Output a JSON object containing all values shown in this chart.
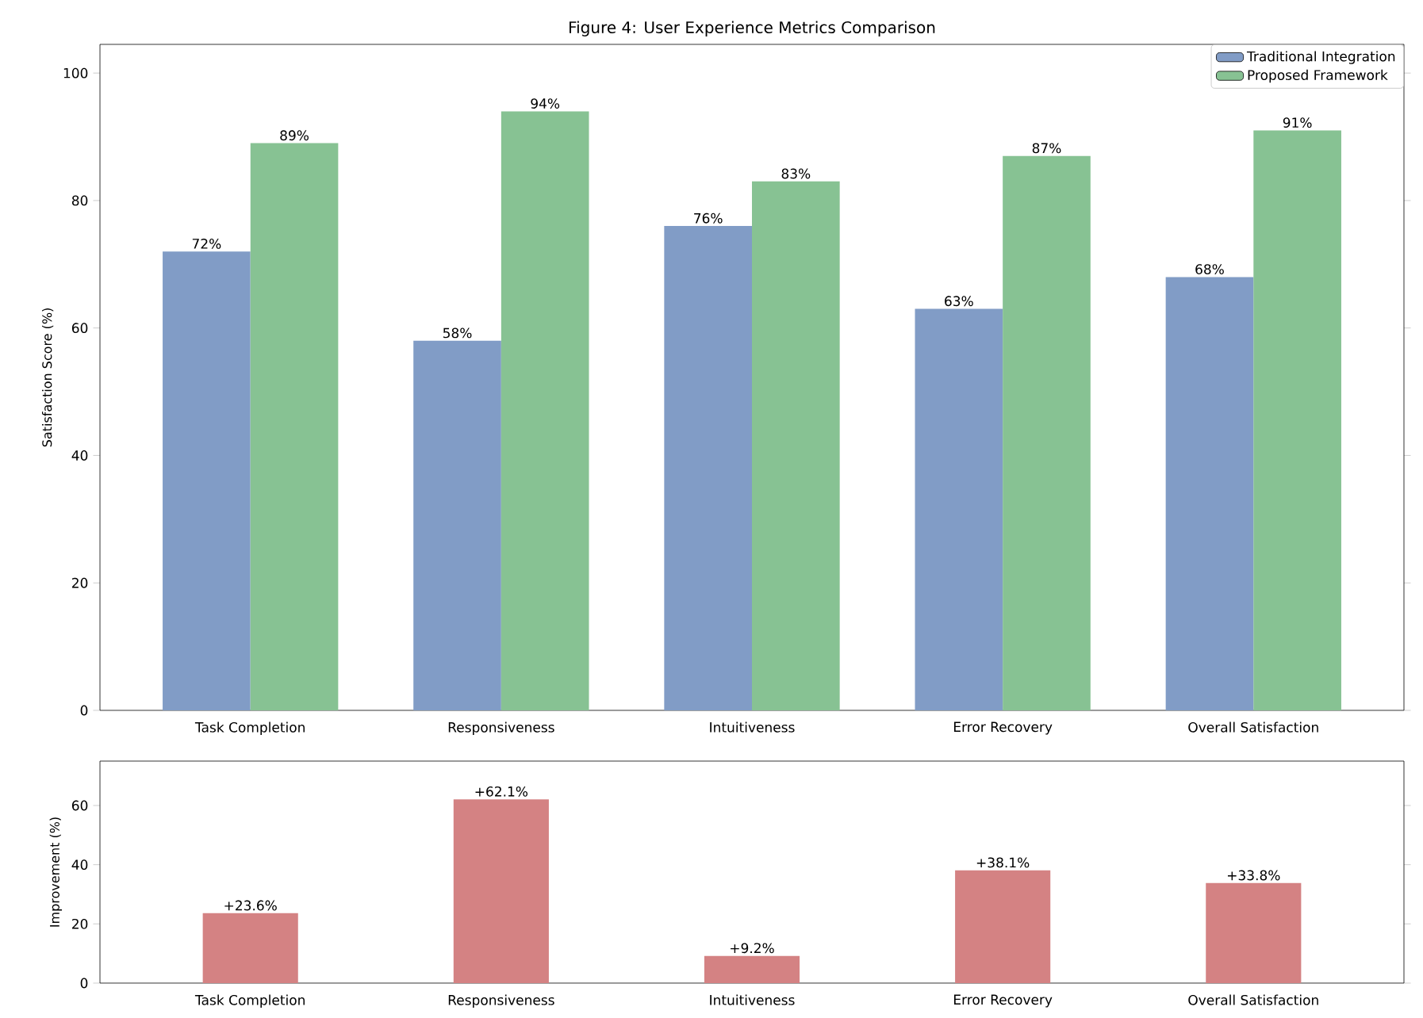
{
  "chart_data": [
    {
      "type": "bar",
      "title": "Figure 4: User Experience Metrics Comparison",
      "ylabel": "Satisfaction Score (%)",
      "categories": [
        "Task Completion",
        "Responsiveness",
        "Intuitiveness",
        "Error Recovery",
        "Overall Satisfaction"
      ],
      "series": [
        {
          "name": "Traditional Integration",
          "color": "#819cc6",
          "values": [
            72,
            58,
            76,
            63,
            68
          ],
          "value_labels": [
            "72%",
            "58%",
            "76%",
            "63%",
            "68%"
          ]
        },
        {
          "name": "Proposed Framework",
          "color": "#87c293",
          "values": [
            89,
            94,
            83,
            87,
            91
          ],
          "value_labels": [
            "89%",
            "94%",
            "83%",
            "87%",
            "91%"
          ]
        }
      ],
      "ylim": [
        0,
        104.5
      ],
      "yticks": [
        0,
        20,
        40,
        60,
        80,
        100
      ],
      "legend": "top right",
      "grid": false
    },
    {
      "type": "bar",
      "ylabel": "Improvement (%)",
      "categories": [
        "Task Completion",
        "Responsiveness",
        "Intuitiveness",
        "Error Recovery",
        "Overall Satisfaction"
      ],
      "series": [
        {
          "color": "#d48283",
          "values": [
            23.6,
            62.1,
            9.2,
            38.1,
            33.8
          ],
          "value_labels": [
            "+23.6%",
            "+62.1%",
            "+9.2%",
            "+38.1%",
            "+33.8%"
          ]
        }
      ],
      "ylim": [
        0,
        75
      ],
      "yticks": [
        0,
        20,
        40,
        60
      ],
      "legend": false,
      "grid": false
    }
  ]
}
